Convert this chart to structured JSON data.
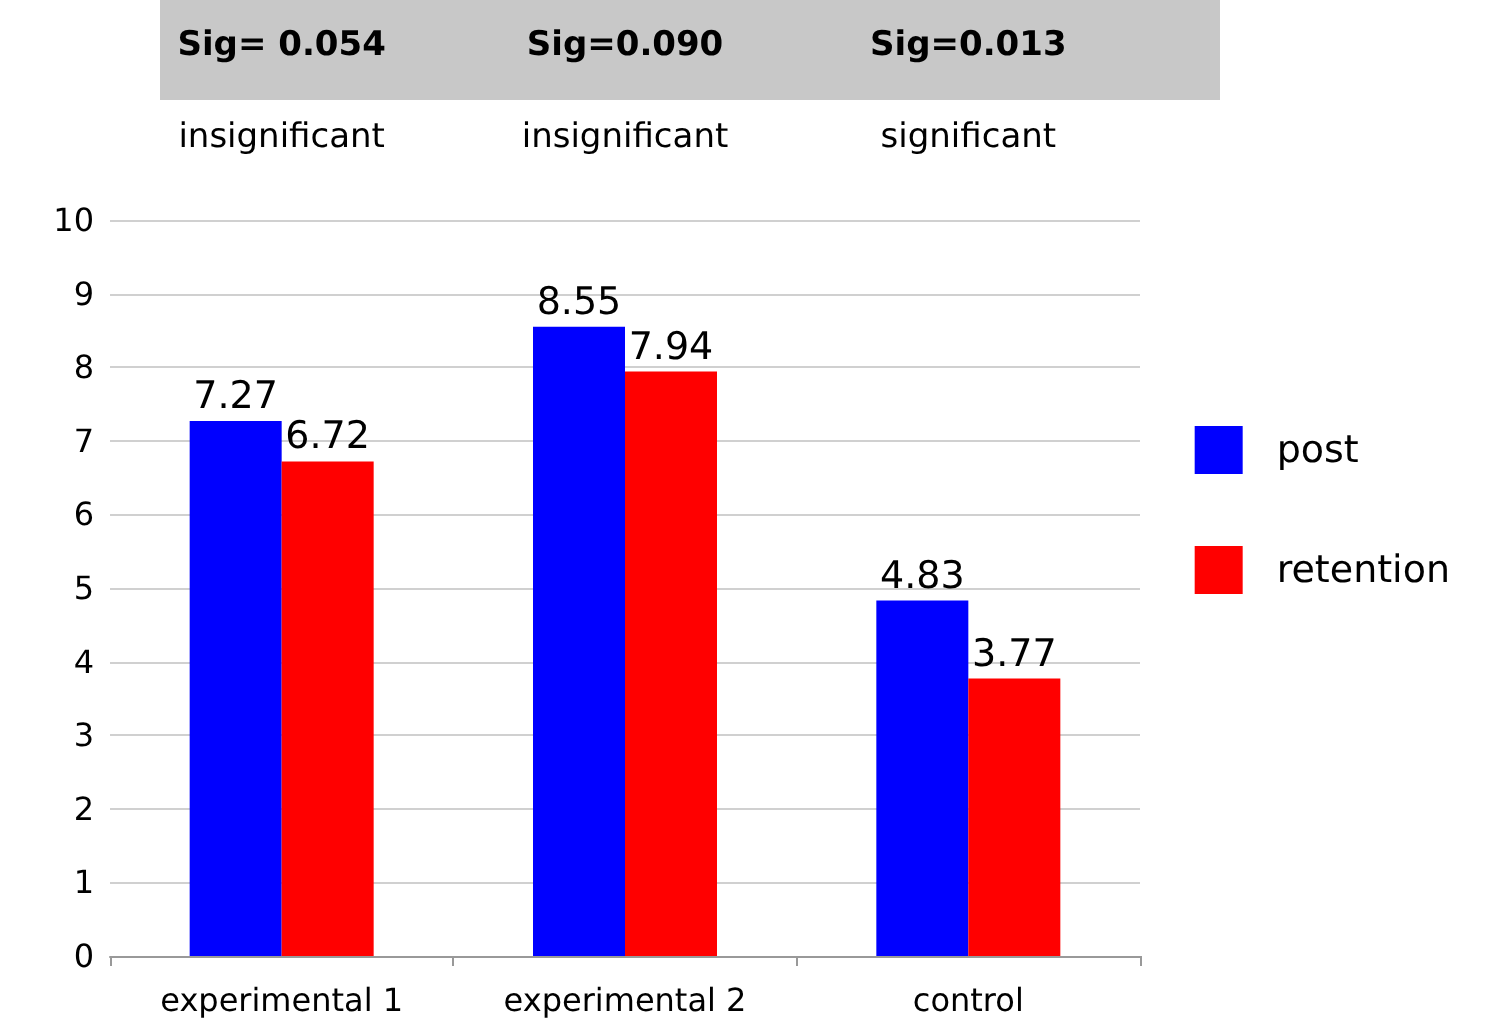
{
  "chart_data": {
    "type": "bar",
    "categories": [
      "experimental 1",
      "experimental 2",
      "control"
    ],
    "series": [
      {
        "name": "post",
        "color": "#0000ff",
        "values": [
          7.27,
          8.55,
          4.83
        ]
      },
      {
        "name": "retention",
        "color": "#ff0000",
        "values": [
          6.72,
          7.94,
          3.77
        ]
      }
    ],
    "ylim": [
      0,
      10
    ],
    "yticks": [
      0,
      1,
      2,
      3,
      4,
      5,
      6,
      7,
      8,
      9,
      10
    ],
    "grid": "y",
    "legend": "right",
    "data_labels": true,
    "annotations": [
      "Sig= 0.054",
      "Sig=0.090",
      "Sig=0.013",
      "insignificant",
      "insignificant",
      "significant"
    ]
  }
}
